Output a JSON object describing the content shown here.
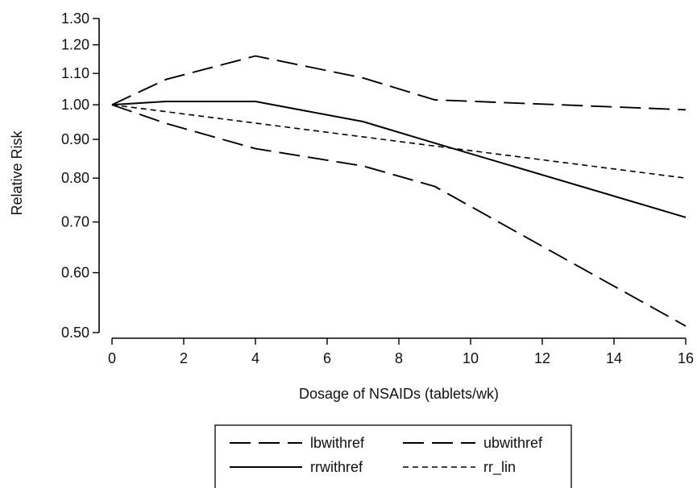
{
  "chart_data": {
    "type": "line",
    "xlabel": "Dosage of NSAIDs (tablets/wk)",
    "ylabel": "Relative Risk",
    "xlim": [
      0,
      16
    ],
    "ylim": [
      0.5,
      1.3
    ],
    "y_scale": "log",
    "x_ticks": [
      0,
      2,
      4,
      6,
      8,
      10,
      12,
      14,
      16
    ],
    "x_tick_labels": [
      "0",
      "2",
      "4",
      "6",
      "8",
      "10",
      "12",
      "14",
      "16"
    ],
    "y_ticks": [
      0.5,
      0.6,
      0.7,
      0.8,
      0.9,
      1.0,
      1.1,
      1.2,
      1.3
    ],
    "y_tick_labels": [
      "0.50",
      "0.60",
      "0.70",
      "0.80",
      "0.90",
      "1.00",
      "1.10",
      "1.20",
      "1.30"
    ],
    "grid": false,
    "legend_position": "bottom",
    "series": [
      {
        "name": "lbwithref",
        "style": "long-dash",
        "x": [
          0,
          1.5,
          4,
          7,
          9,
          16
        ],
        "y": [
          1.0,
          0.945,
          0.875,
          0.83,
          0.78,
          0.51
        ]
      },
      {
        "name": "ubwithref",
        "style": "long-dash",
        "x": [
          0,
          1.5,
          4,
          7,
          9,
          16
        ],
        "y": [
          1.0,
          1.08,
          1.16,
          1.085,
          1.015,
          0.985
        ]
      },
      {
        "name": "rrwithref",
        "style": "solid",
        "x": [
          0,
          1.5,
          4,
          7,
          9,
          16
        ],
        "y": [
          1.0,
          1.01,
          1.01,
          0.95,
          0.89,
          0.71
        ]
      },
      {
        "name": "rr_lin",
        "style": "short-dash",
        "x": [
          0,
          16
        ],
        "y": [
          1.0,
          0.8
        ]
      }
    ],
    "colors": {
      "line": "#000000",
      "background": "#ffffff"
    }
  }
}
